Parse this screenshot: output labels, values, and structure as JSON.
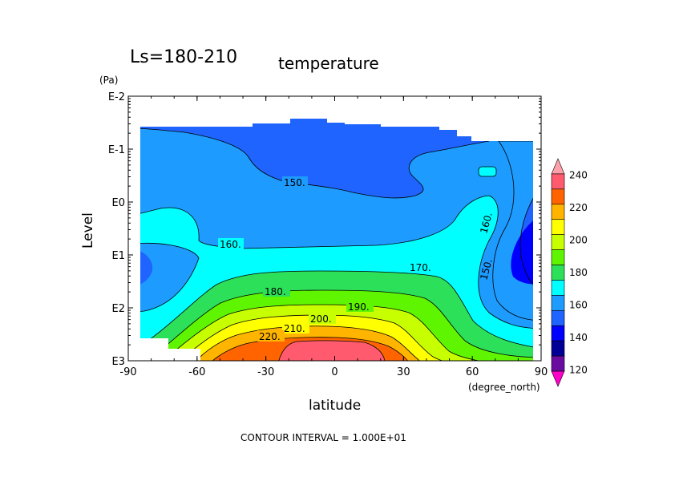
{
  "chart_data": {
    "type": "heatmap",
    "title": "Ls=180-210",
    "subtitle": "temperature",
    "xlabel": "latitude",
    "xunit": "(degree_north)",
    "ylabel": "Level",
    "yunit": "(Pa)",
    "xlim": [
      -90,
      90
    ],
    "xticks": [
      "-90",
      "-60",
      "-30",
      "0",
      "30",
      "60",
      "90"
    ],
    "yticks": [
      "E-2",
      "E-1",
      "E0",
      "E1",
      "E2",
      "E3"
    ],
    "contour_labels": [
      "150.",
      "160.",
      "160.",
      "150.",
      "170.",
      "180.",
      "190.",
      "200.",
      "210.",
      "220."
    ],
    "colorbar": {
      "levels": [
        110,
        120,
        130,
        140,
        150,
        160,
        170,
        180,
        190,
        200,
        210,
        220,
        230,
        240,
        250
      ],
      "tick_labels": [
        "120",
        "140",
        "160",
        "180",
        "200",
        "220",
        "240"
      ],
      "colors": [
        "#ff00c8",
        "#6a0ca0",
        "#000096",
        "#0000ff",
        "#1f64ff",
        "#1e9bff",
        "#00ffff",
        "#2de05a",
        "#5ff500",
        "#c8ff00",
        "#ffff00",
        "#ffb400",
        "#ff6400",
        "#ff5a6e",
        "#ffa0aa"
      ]
    },
    "footer": "CONTOUR INTERVAL = 1.000E+01"
  }
}
